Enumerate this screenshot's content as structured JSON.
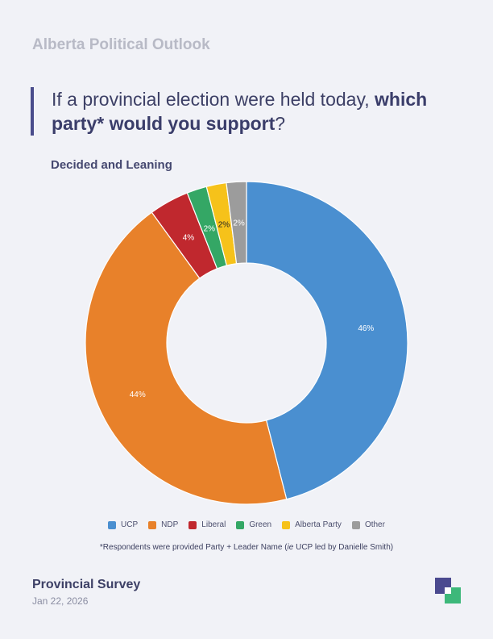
{
  "header": {
    "title": "Alberta Political Outlook"
  },
  "question": {
    "prefix": "If a provincial election were held today, ",
    "bold": "which party* would you support",
    "suffix": "?"
  },
  "subtitle": "Decided and Leaning",
  "footnote": {
    "pre": "*Respondents were provided Party + Leader Name (",
    "italic": "ie",
    "post": " UCP led by Danielle Smith)"
  },
  "footer": {
    "title": "Provincial Survey",
    "date": "Jan 22, 2026"
  },
  "colors": {
    "accent": "#4a4d8c",
    "logo_purple": "#4b4a8f",
    "logo_green": "#3db87a"
  },
  "chart_data": {
    "type": "pie",
    "donut": true,
    "legend_position": "bottom",
    "categories": [
      "UCP",
      "NDP",
      "Liberal",
      "Green",
      "Alberta Party",
      "Other"
    ],
    "values": [
      46,
      44,
      4,
      2,
      2,
      2
    ],
    "labels": [
      "46%",
      "44%",
      "4%",
      "2%",
      "2%",
      "2%"
    ],
    "colors": [
      "#4a8fd0",
      "#e8812a",
      "#c0282e",
      "#34a765",
      "#f6c21a",
      "#9c9c9c"
    ],
    "label_colors": [
      "#ffffff",
      "#ffffff",
      "#ffffff",
      "#ffffff",
      "#222222",
      "#ffffff"
    ]
  }
}
